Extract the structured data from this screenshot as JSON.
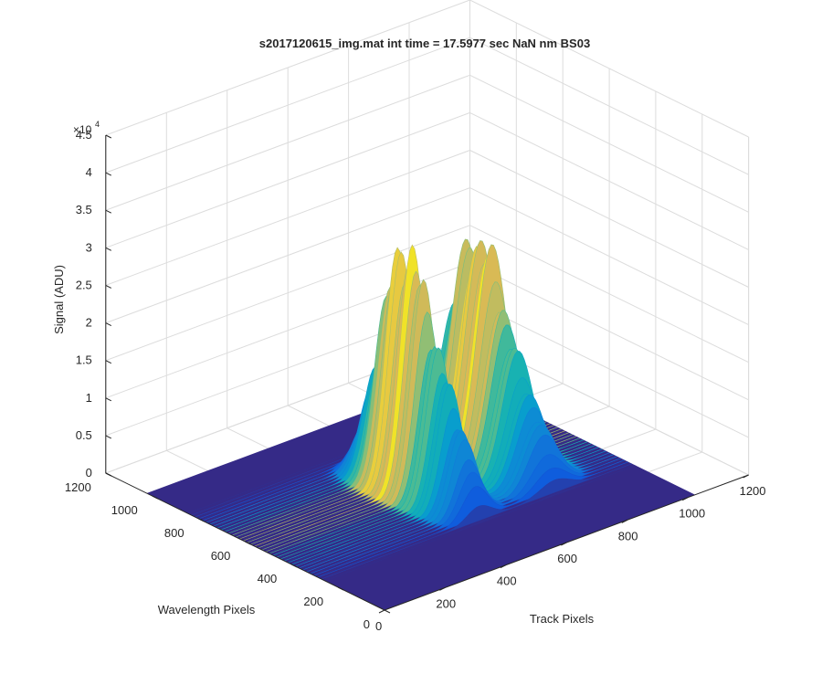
{
  "chart_data": {
    "type": "surface",
    "title": "s2017120615_img.mat int time = 17.5977 sec  NaN nm BS03",
    "xlabel": "Track Pixels",
    "ylabel": "Wavelength Pixels",
    "zlabel": "Signal (ADU)",
    "z_exponent_label": "×10",
    "z_exponent_power": "4",
    "xlim": [
      0,
      1200
    ],
    "ylim": [
      0,
      1200
    ],
    "zlim": [
      0,
      45000
    ],
    "x_ticks": [
      "0",
      "200",
      "400",
      "600",
      "800",
      "1000",
      "1200"
    ],
    "y_ticks": [
      "0",
      "200",
      "400",
      "600",
      "800",
      "1000",
      "1200"
    ],
    "z_ticks": [
      "0",
      "0.5",
      "1",
      "1.5",
      "2",
      "2.5",
      "3",
      "3.5",
      "4",
      "4.5"
    ],
    "grid": true,
    "colormap": "parula",
    "baseline_color": "#352a87",
    "peak_color": "#f9fb0e",
    "data_extent": {
      "x": [
        0,
        1024
      ],
      "y": [
        0,
        1024
      ]
    },
    "peaks": [
      {
        "track_center": 520,
        "track_width": 40,
        "wavelength_start": 250,
        "wavelength_end": 820,
        "wavelength_center": 640,
        "max_signal": 34000
      },
      {
        "track_center": 770,
        "track_width": 50,
        "wavelength_start": 250,
        "wavelength_end": 860,
        "wavelength_center": 640,
        "max_signal": 30000
      }
    ]
  }
}
